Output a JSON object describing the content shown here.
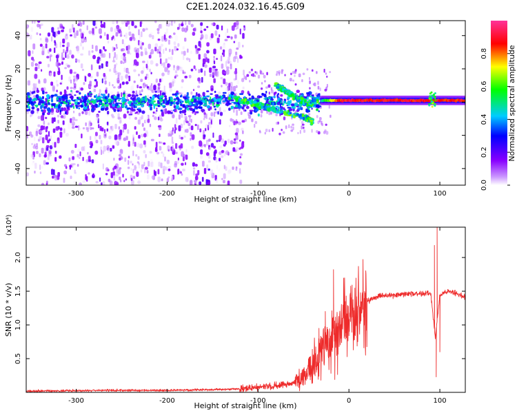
{
  "title": "C2E1.2024.032.16.45.G09",
  "colors": {
    "snr_line": "#ee2b2b",
    "colormap": [
      "#ffffff",
      "#cc99ff",
      "#8800ff",
      "#0000ff",
      "#00ccff",
      "#00ff00",
      "#ffff00",
      "#ff0000",
      "#ff3399"
    ]
  },
  "chart_data": [
    {
      "type": "heatmap",
      "name": "spectrogram",
      "xlabel": "Height of straight line (km)",
      "ylabel": "Frequency (Hz)",
      "xlim": [
        -355,
        128
      ],
      "ylim": [
        -50,
        49
      ],
      "xticks": [
        -300,
        -200,
        -100,
        0,
        100
      ],
      "yticks": [
        -40,
        -20,
        0,
        20,
        40
      ],
      "colorbar": {
        "label": "Normalized spectral amplitude",
        "range": [
          0,
          1
        ],
        "ticks": [
          "0.0",
          "0.2",
          "0.4",
          "0.6",
          "0.8"
        ]
      },
      "features": [
        {
          "description": "scattered background noise",
          "x_range": [
            -355,
            -115
          ],
          "freq_range": [
            -50,
            49
          ],
          "amplitude": 0.2
        },
        {
          "description": "broad low-frequency band",
          "x_range": [
            -355,
            -30
          ],
          "freq_center": 0,
          "freq_halfwidth": 6,
          "amplitude": 0.35
        },
        {
          "description": "main tone at carrier",
          "x_range": [
            -30,
            128
          ],
          "freq_center": 1,
          "amplitude": 0.9
        },
        {
          "description": "descending branch",
          "points": [
            [
              -130,
              3
            ],
            [
              -100,
              -2
            ],
            [
              -80,
              -5
            ],
            [
              -50,
              -9
            ],
            [
              -40,
              -12
            ]
          ],
          "amplitude": 0.55
        },
        {
          "description": "upper branch",
          "points": [
            [
              -80,
              10
            ],
            [
              -70,
              7
            ],
            [
              -60,
              3
            ],
            [
              -45,
              -1
            ],
            [
              -35,
              1
            ]
          ],
          "amplitude": 0.55
        }
      ]
    },
    {
      "type": "line",
      "name": "snr",
      "xlabel": "Height of straight line (km)",
      "ylabel": "SNR (10 * v/v)",
      "yscale_label": "(x10⁴)",
      "xlim": [
        -355,
        128
      ],
      "ylim": [
        0,
        2.45
      ],
      "xticks": [
        -300,
        -200,
        -100,
        0,
        100
      ],
      "yticks": [
        0.5,
        1.0,
        1.5,
        2.0
      ],
      "ytick_labels": [
        "0.5",
        "1.0",
        "1.5",
        "2.0"
      ],
      "trend_x": [
        -355,
        -250,
        -200,
        -150,
        -120,
        -100,
        -80,
        -60,
        -50,
        -40,
        -30,
        -20,
        -10,
        0,
        10,
        20,
        30,
        60,
        90,
        95,
        100,
        105,
        110,
        128
      ],
      "trend_y": [
        0.02,
        0.03,
        0.03,
        0.04,
        0.05,
        0.07,
        0.1,
        0.14,
        0.22,
        0.4,
        0.62,
        0.78,
        0.92,
        1.05,
        1.2,
        1.35,
        1.42,
        1.46,
        1.47,
        0.8,
        1.45,
        1.48,
        1.5,
        1.42
      ],
      "spikes": [
        [
          -17,
          1.82
        ],
        [
          -26,
          1.2
        ],
        [
          -33,
          0.95
        ],
        [
          97,
          2.45
        ],
        [
          96,
          0.23
        ],
        [
          94,
          2.18
        ],
        [
          100,
          0.6
        ]
      ]
    }
  ]
}
